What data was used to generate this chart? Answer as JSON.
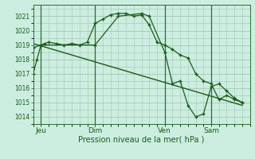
{
  "background_color": "#cceee0",
  "grid_color": "#aaccbb",
  "line_color": "#1a5c1a",
  "xlabel": "Pression niveau de la mer( hPa )",
  "ylim": [
    1013.5,
    1021.8
  ],
  "yticks": [
    1014,
    1015,
    1016,
    1017,
    1018,
    1019,
    1020,
    1021
  ],
  "xlim": [
    0,
    28
  ],
  "day_labels": [
    "Jeu",
    "Dim",
    "Ven",
    "Sam"
  ],
  "day_positions": [
    1,
    8,
    17,
    23
  ],
  "vline_positions": [
    1,
    8,
    17,
    23
  ],
  "line1_x": [
    0,
    0.5,
    1,
    1.5,
    2,
    3,
    4,
    5,
    6,
    7,
    8,
    9,
    10,
    11,
    12,
    13,
    14,
    15,
    16,
    17,
    18,
    19,
    20,
    21,
    22,
    23,
    24,
    25,
    26,
    27
  ],
  "line1_y": [
    1017.0,
    1018.0,
    1019.0,
    1019.1,
    1019.2,
    1019.1,
    1019.0,
    1019.1,
    1019.0,
    1019.2,
    1020.5,
    1020.8,
    1021.1,
    1021.2,
    1021.2,
    1021.0,
    1021.1,
    1020.4,
    1019.2,
    1019.0,
    1018.7,
    1018.3,
    1018.1,
    1017.0,
    1016.5,
    1016.3,
    1015.2,
    1015.5,
    1015.2,
    1015.0
  ],
  "line2_x": [
    0,
    1,
    8,
    11,
    14,
    15,
    17,
    18,
    19,
    20,
    21,
    22,
    23,
    24,
    25,
    26,
    27
  ],
  "line2_y": [
    1018.8,
    1019.0,
    1019.0,
    1021.0,
    1021.2,
    1021.0,
    1018.5,
    1016.3,
    1016.5,
    1014.8,
    1014.0,
    1014.2,
    1016.1,
    1016.3,
    1015.8,
    1015.3,
    1015.0
  ],
  "line3_x": [
    0,
    27
  ],
  "line3_y": [
    1019.1,
    1014.8
  ]
}
